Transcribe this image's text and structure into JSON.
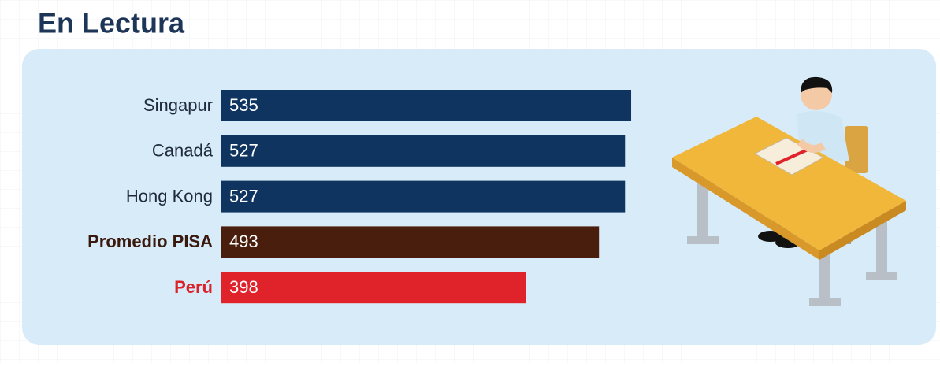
{
  "chart_data": {
    "type": "bar",
    "orientation": "horizontal",
    "title": "En Lectura",
    "categories": [
      "Singapur",
      "Canadá",
      "Hong Kong",
      "Promedio PISA",
      "Perú"
    ],
    "values": [
      535,
      527,
      527,
      493,
      398
    ],
    "colors": [
      "#0f3460",
      "#0f3460",
      "#0f3460",
      "#4a1e0c",
      "#e0232b"
    ],
    "label_colors": [
      "#1f2a3c",
      "#1f2a3c",
      "#1f2a3c",
      "#3a1a0e",
      "#d8232b"
    ]
  }
}
